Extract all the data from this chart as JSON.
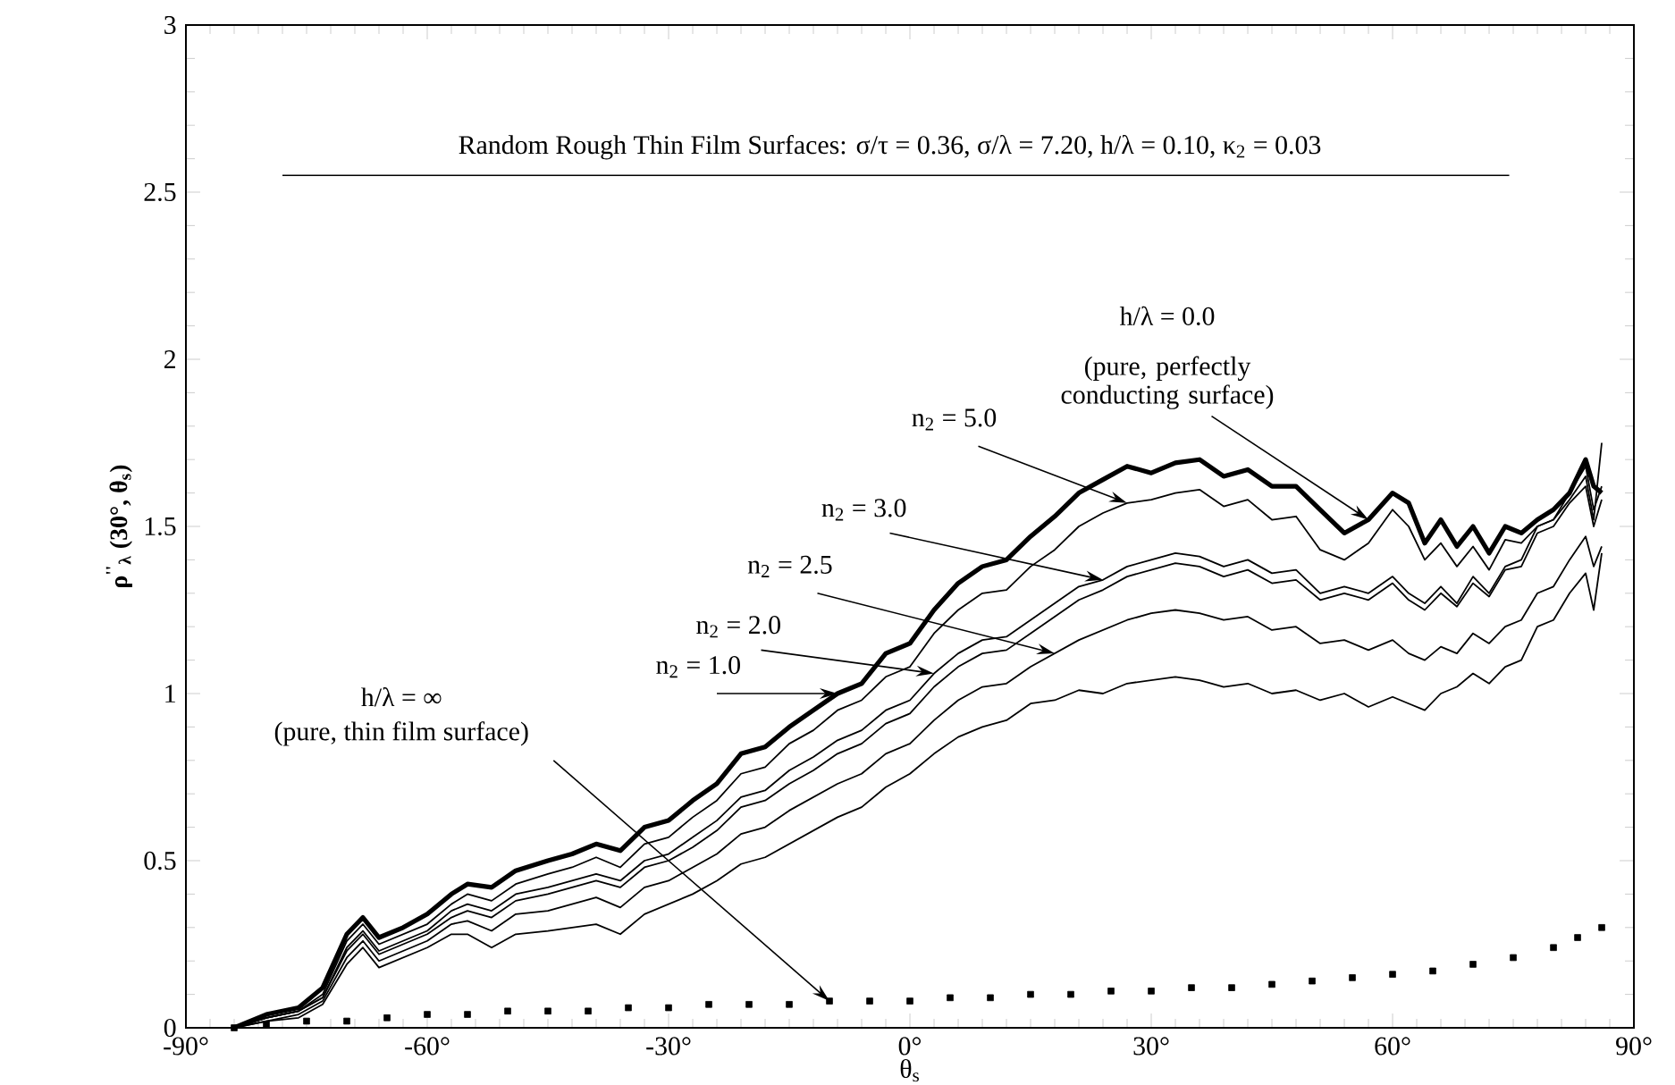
{
  "chart_data": {
    "type": "line",
    "title": "Random Rough Thin Film Surfaces: σ/τ = 0.36, σ/λ = 7.20, h/λ = 0.10, κ$_{2}$ = 0.03",
    "xlabel": "θ$_{s}$",
    "ylabel": "ρ$^{''}$$_{λ}$ (30°, θ$_{s}$)",
    "x": [
      -84,
      -80,
      -76,
      -73,
      -70,
      -68,
      -66,
      -63,
      -60,
      -57,
      -55,
      -52,
      -49,
      -45,
      -42,
      -39,
      -36,
      -33,
      -30,
      -27,
      -24,
      -21,
      -18,
      -15,
      -12,
      -9,
      -6,
      -3,
      0,
      3,
      6,
      9,
      12,
      15,
      18,
      21,
      24,
      27,
      30,
      33,
      36,
      39,
      42,
      45,
      48,
      51,
      54,
      57,
      60,
      62,
      64,
      66,
      68,
      70,
      72,
      74,
      76,
      78,
      80,
      82,
      84,
      85,
      86
    ],
    "series": [
      {
        "color": "#000000",
        "values": [
          0,
          0.04,
          0.06,
          0.12,
          0.28,
          0.33,
          0.27,
          0.3,
          0.34,
          0.4,
          0.43,
          0.42,
          0.47,
          0.5,
          0.52,
          0.55,
          0.53,
          0.6,
          0.62,
          0.68,
          0.73,
          0.82,
          0.84,
          0.9,
          0.95,
          1.0,
          1.03,
          1.12,
          1.15,
          1.25,
          1.33,
          1.38,
          1.4,
          1.47,
          1.53,
          1.6,
          1.64,
          1.68,
          1.66,
          1.69,
          1.7,
          1.65,
          1.67,
          1.62,
          1.62,
          1.55,
          1.48,
          1.52,
          1.6,
          1.57,
          1.45,
          1.52,
          1.44,
          1.5,
          1.42,
          1.5,
          1.48,
          1.52,
          1.55,
          1.6,
          1.7,
          1.62,
          1.6
        ]
      },
      {
        "color": "#000000",
        "values": [
          0,
          0.03,
          0.05,
          0.1,
          0.26,
          0.31,
          0.25,
          0.28,
          0.31,
          0.37,
          0.4,
          0.38,
          0.43,
          0.46,
          0.48,
          0.51,
          0.48,
          0.55,
          0.57,
          0.63,
          0.68,
          0.76,
          0.78,
          0.85,
          0.89,
          0.95,
          0.98,
          1.05,
          1.08,
          1.18,
          1.25,
          1.3,
          1.31,
          1.38,
          1.43,
          1.5,
          1.54,
          1.57,
          1.58,
          1.6,
          1.61,
          1.56,
          1.58,
          1.52,
          1.53,
          1.43,
          1.4,
          1.45,
          1.55,
          1.5,
          1.4,
          1.45,
          1.38,
          1.44,
          1.37,
          1.46,
          1.45,
          1.5,
          1.52,
          1.58,
          1.65,
          1.52,
          1.75
        ]
      },
      {
        "color": "#000000",
        "values": [
          0,
          0.03,
          0.05,
          0.09,
          0.24,
          0.29,
          0.23,
          0.26,
          0.29,
          0.35,
          0.37,
          0.35,
          0.4,
          0.42,
          0.44,
          0.46,
          0.44,
          0.5,
          0.52,
          0.57,
          0.62,
          0.69,
          0.71,
          0.77,
          0.81,
          0.86,
          0.89,
          0.95,
          0.98,
          1.06,
          1.12,
          1.16,
          1.17,
          1.22,
          1.27,
          1.32,
          1.34,
          1.38,
          1.4,
          1.42,
          1.41,
          1.38,
          1.4,
          1.36,
          1.37,
          1.3,
          1.32,
          1.3,
          1.35,
          1.3,
          1.27,
          1.32,
          1.27,
          1.35,
          1.3,
          1.38,
          1.4,
          1.5,
          1.52,
          1.6,
          1.68,
          1.55,
          1.62
        ]
      },
      {
        "color": "#000000",
        "values": [
          0,
          0.03,
          0.05,
          0.09,
          0.23,
          0.28,
          0.22,
          0.25,
          0.28,
          0.33,
          0.35,
          0.33,
          0.38,
          0.4,
          0.42,
          0.44,
          0.42,
          0.48,
          0.5,
          0.54,
          0.59,
          0.66,
          0.68,
          0.73,
          0.77,
          0.82,
          0.85,
          0.91,
          0.94,
          1.02,
          1.08,
          1.12,
          1.13,
          1.18,
          1.23,
          1.28,
          1.31,
          1.35,
          1.37,
          1.39,
          1.38,
          1.35,
          1.37,
          1.33,
          1.34,
          1.28,
          1.3,
          1.28,
          1.33,
          1.28,
          1.25,
          1.3,
          1.26,
          1.33,
          1.29,
          1.37,
          1.38,
          1.48,
          1.5,
          1.57,
          1.62,
          1.5,
          1.58
        ]
      },
      {
        "color": "#000000",
        "values": [
          0,
          0.02,
          0.04,
          0.08,
          0.21,
          0.26,
          0.2,
          0.23,
          0.26,
          0.31,
          0.32,
          0.29,
          0.34,
          0.35,
          0.37,
          0.39,
          0.36,
          0.42,
          0.44,
          0.48,
          0.52,
          0.58,
          0.6,
          0.65,
          0.69,
          0.73,
          0.76,
          0.82,
          0.85,
          0.92,
          0.98,
          1.02,
          1.03,
          1.08,
          1.12,
          1.16,
          1.19,
          1.22,
          1.24,
          1.25,
          1.24,
          1.22,
          1.23,
          1.19,
          1.2,
          1.15,
          1.16,
          1.13,
          1.16,
          1.12,
          1.1,
          1.14,
          1.12,
          1.18,
          1.15,
          1.2,
          1.22,
          1.3,
          1.32,
          1.4,
          1.47,
          1.38,
          1.44
        ]
      },
      {
        "color": "#000000",
        "values": [
          0,
          0.02,
          0.03,
          0.07,
          0.19,
          0.24,
          0.18,
          0.21,
          0.24,
          0.28,
          0.28,
          0.24,
          0.28,
          0.29,
          0.3,
          0.31,
          0.28,
          0.34,
          0.37,
          0.4,
          0.44,
          0.49,
          0.51,
          0.55,
          0.59,
          0.63,
          0.66,
          0.72,
          0.76,
          0.82,
          0.87,
          0.9,
          0.92,
          0.97,
          0.98,
          1.01,
          1.0,
          1.03,
          1.04,
          1.05,
          1.04,
          1.02,
          1.03,
          1.0,
          1.01,
          0.98,
          1.0,
          0.96,
          0.99,
          0.97,
          0.95,
          1.0,
          1.02,
          1.06,
          1.03,
          1.08,
          1.1,
          1.2,
          1.22,
          1.3,
          1.36,
          1.25,
          1.42
        ]
      },
      {
        "type": "scatter",
        "marker": "square",
        "color": "#000000",
        "x": [
          -84,
          -80,
          -75,
          -70,
          -65,
          -60,
          -55,
          -50,
          -45,
          -40,
          -35,
          -30,
          -25,
          -20,
          -15,
          -10,
          -5,
          0,
          5,
          10,
          15,
          20,
          25,
          30,
          35,
          40,
          45,
          50,
          55,
          60,
          65,
          70,
          75,
          80,
          83,
          86
        ],
        "values": [
          0,
          0.01,
          0.02,
          0.02,
          0.03,
          0.04,
          0.04,
          0.05,
          0.05,
          0.05,
          0.06,
          0.06,
          0.07,
          0.07,
          0.07,
          0.08,
          0.08,
          0.08,
          0.09,
          0.09,
          0.1,
          0.1,
          0.11,
          0.11,
          0.12,
          0.12,
          0.13,
          0.14,
          0.15,
          0.16,
          0.17,
          0.19,
          0.21,
          0.24,
          0.27,
          0.3
        ]
      }
    ],
    "xlim": [
      -90,
      90
    ],
    "ylim": [
      0,
      3
    ],
    "xticks": [
      {
        "value": -90,
        "label": "-90°"
      },
      {
        "value": -60,
        "label": "-60°"
      },
      {
        "value": -30,
        "label": "-30°"
      },
      {
        "value": 0,
        "label": "0°"
      },
      {
        "value": 30,
        "label": "30°"
      },
      {
        "value": 60,
        "label": "60°"
      },
      {
        "value": 90,
        "label": "90°"
      }
    ],
    "yticks": [
      0,
      0.5,
      1,
      1.5,
      2,
      2.5,
      3
    ],
    "ref_lines": [
      {
        "axis": "y",
        "value": 2.55,
        "color": "#000000"
      }
    ],
    "annotations": [
      "h/λ = 0.0",
      {
        "text": "(pure, perfectly conducting surface)",
        "x": 57,
        "y": 1.52
      },
      {
        "text": "n$_{2}$ = 5.0",
        "x": 27,
        "y": 1.57
      },
      {
        "text": "n$_{2}$ = 3.0",
        "x": 24,
        "y": 1.34
      },
      {
        "text": "n$_{2}$ = 2.5",
        "x": 18,
        "y": 1.12
      },
      {
        "text": "n$_{2}$ = 2.0",
        "x": 3,
        "y": 1.06
      },
      {
        "text": "n$_{2}$ = 1.0",
        "x": -9,
        "y": 1.0
      },
      "h/λ = ∞",
      {
        "text": "(pure, thin film surface)",
        "x": -10,
        "y": 0.08
      }
    ]
  }
}
